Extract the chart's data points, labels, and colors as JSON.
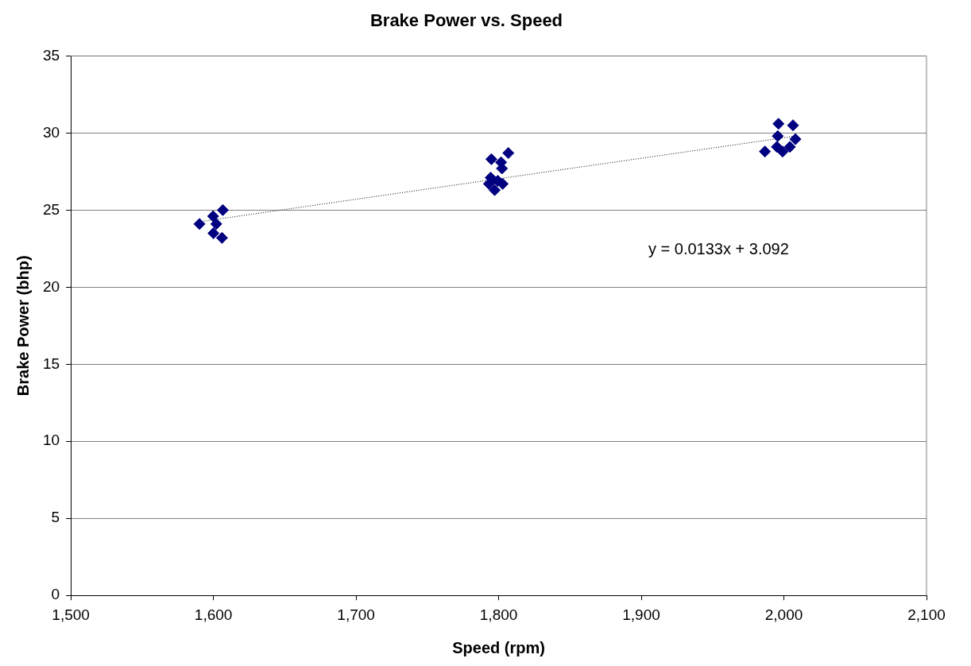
{
  "chart_data": {
    "type": "scatter",
    "title": "Brake Power vs. Speed",
    "xlabel": "Speed (rpm)",
    "ylabel": "Brake Power (bhp)",
    "series": [
      {
        "color": "#000080",
        "marker": "diamond",
        "x": [
          1590.2,
          1599.8,
          1606.6,
          1602,
          1600,
          1606,
          1806.8,
          1794.9,
          1801.7,
          1802.3,
          1794.4,
          1793.2,
          1797.2,
          1802.8,
          1799.4,
          1996.2,
          2006.4,
          1995.7,
          2008.1,
          1986.7,
          1995.1,
          1999.1,
          2004.2
        ],
        "values": [
          24.1,
          24.6,
          25.0,
          24.1,
          23.5,
          23.2,
          28.7,
          28.3,
          28.1,
          27.7,
          27.1,
          26.7,
          26.3,
          26.7,
          26.9,
          30.6,
          30.5,
          29.8,
          29.6,
          28.8,
          29.1,
          28.8,
          29.1
        ]
      },
      {
        "type": "line",
        "color": "#000000",
        "marker": "none",
        "line_style": "dotted",
        "x": [
          1590,
          2008
        ],
        "values": [
          24.24,
          29.8
        ]
      }
    ],
    "xlim": [
      1500,
      2100
    ],
    "xticks": [
      {
        "value": 1500,
        "label": "1,500"
      },
      {
        "value": 1600,
        "label": "1,600"
      },
      {
        "value": 1700,
        "label": "1,700"
      },
      {
        "value": 1800,
        "label": "1,800"
      },
      {
        "value": 1900,
        "label": "1,900"
      },
      {
        "value": 2000,
        "label": "2,000"
      },
      {
        "value": 2100,
        "label": "2,100"
      }
    ],
    "ylim": [
      0,
      35
    ],
    "yticks": [
      0,
      5,
      10,
      15,
      20,
      25,
      30,
      35
    ],
    "grid": "y",
    "legend": false,
    "annotations": [
      "y = 0.0133x + 3.092"
    ]
  }
}
